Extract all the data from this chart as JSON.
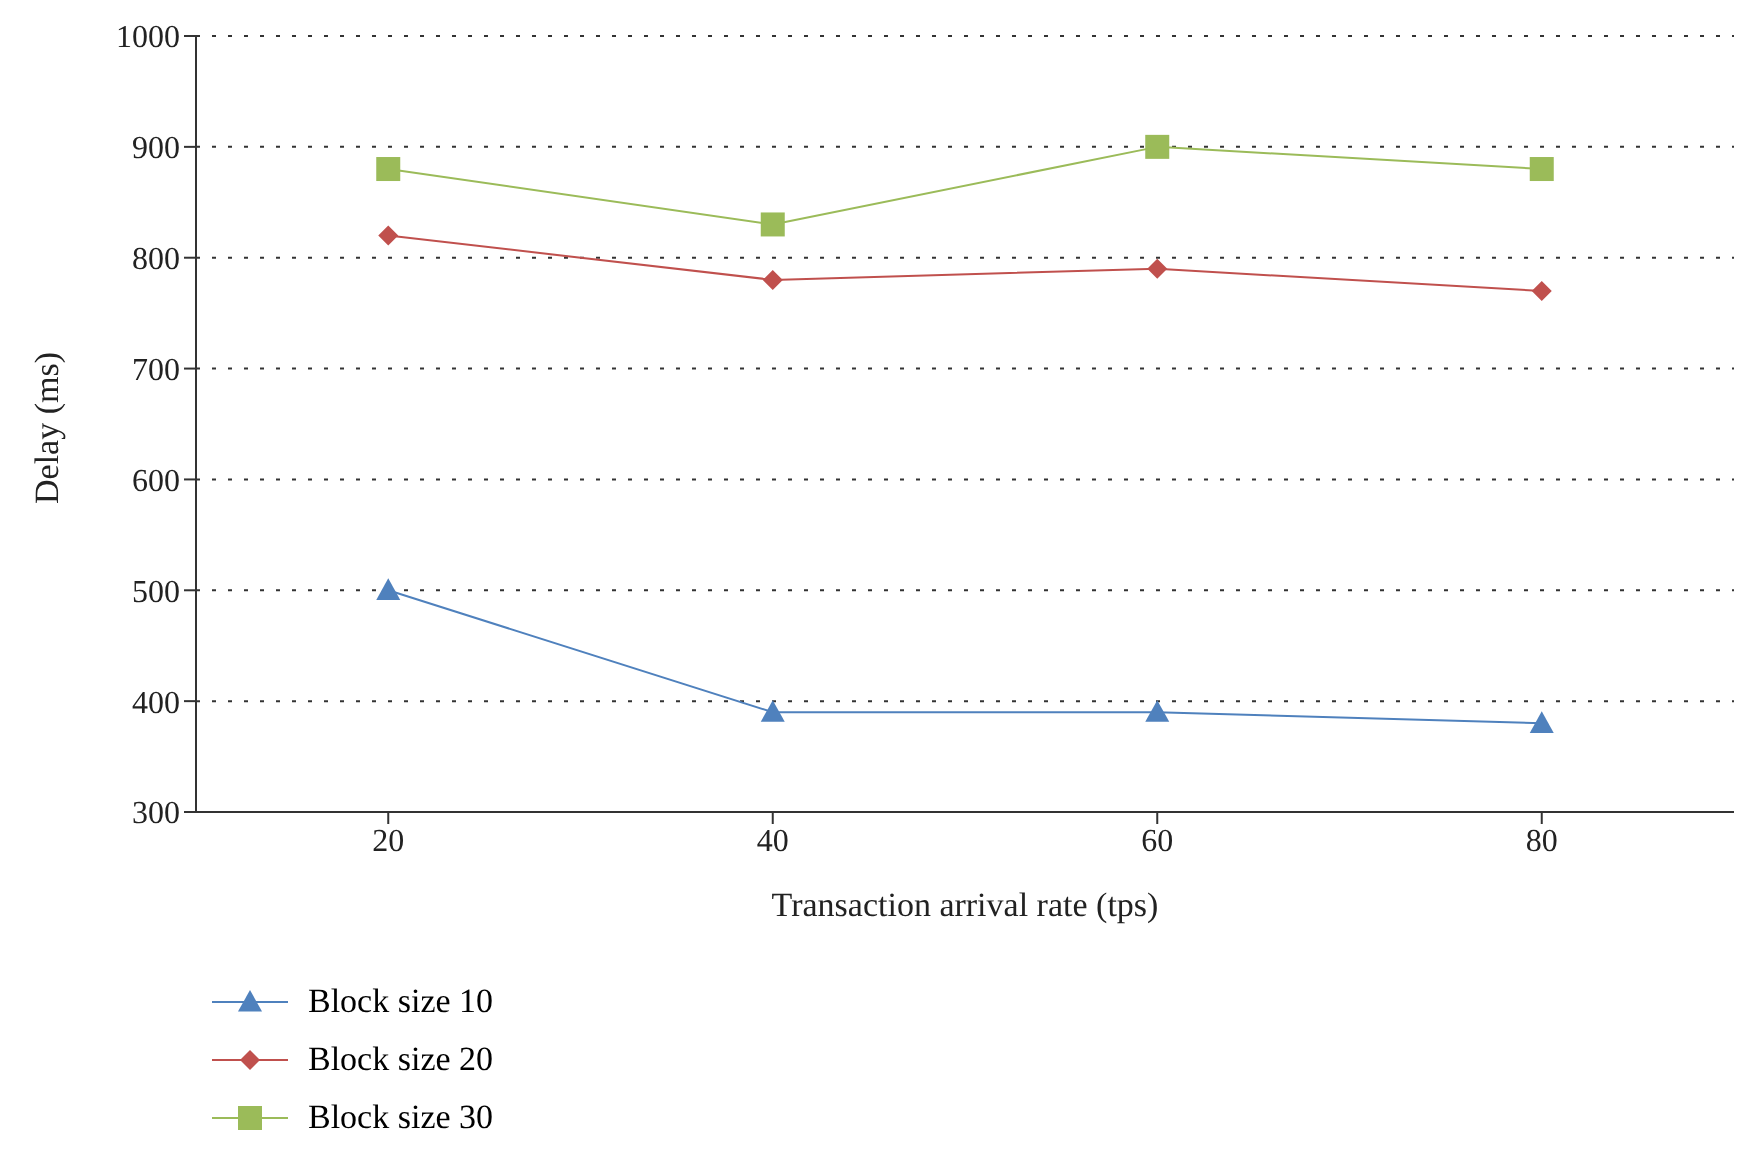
{
  "chart_data": {
    "type": "line",
    "xlabel": "Transaction arrival rate (tps)",
    "ylabel": "Delay (ms)",
    "categories": [
      "20",
      "40",
      "60",
      "80"
    ],
    "series": [
      {
        "name": "Block size 10",
        "color": "#4f81bd",
        "marker": "triangle",
        "values": [
          500,
          390,
          390,
          380
        ]
      },
      {
        "name": "Block size 20",
        "color": "#c0504d",
        "marker": "diamond",
        "values": [
          820,
          780,
          790,
          770
        ]
      },
      {
        "name": "Block size 30",
        "color": "#9bbb59",
        "marker": "square",
        "values": [
          880,
          830,
          900,
          880
        ]
      }
    ],
    "ylim": [
      300,
      1000
    ],
    "yticks": [
      300,
      400,
      500,
      600,
      700,
      800,
      900,
      1000
    ],
    "grid": "y",
    "legend": "bottom left",
    "line_style": "solid"
  }
}
